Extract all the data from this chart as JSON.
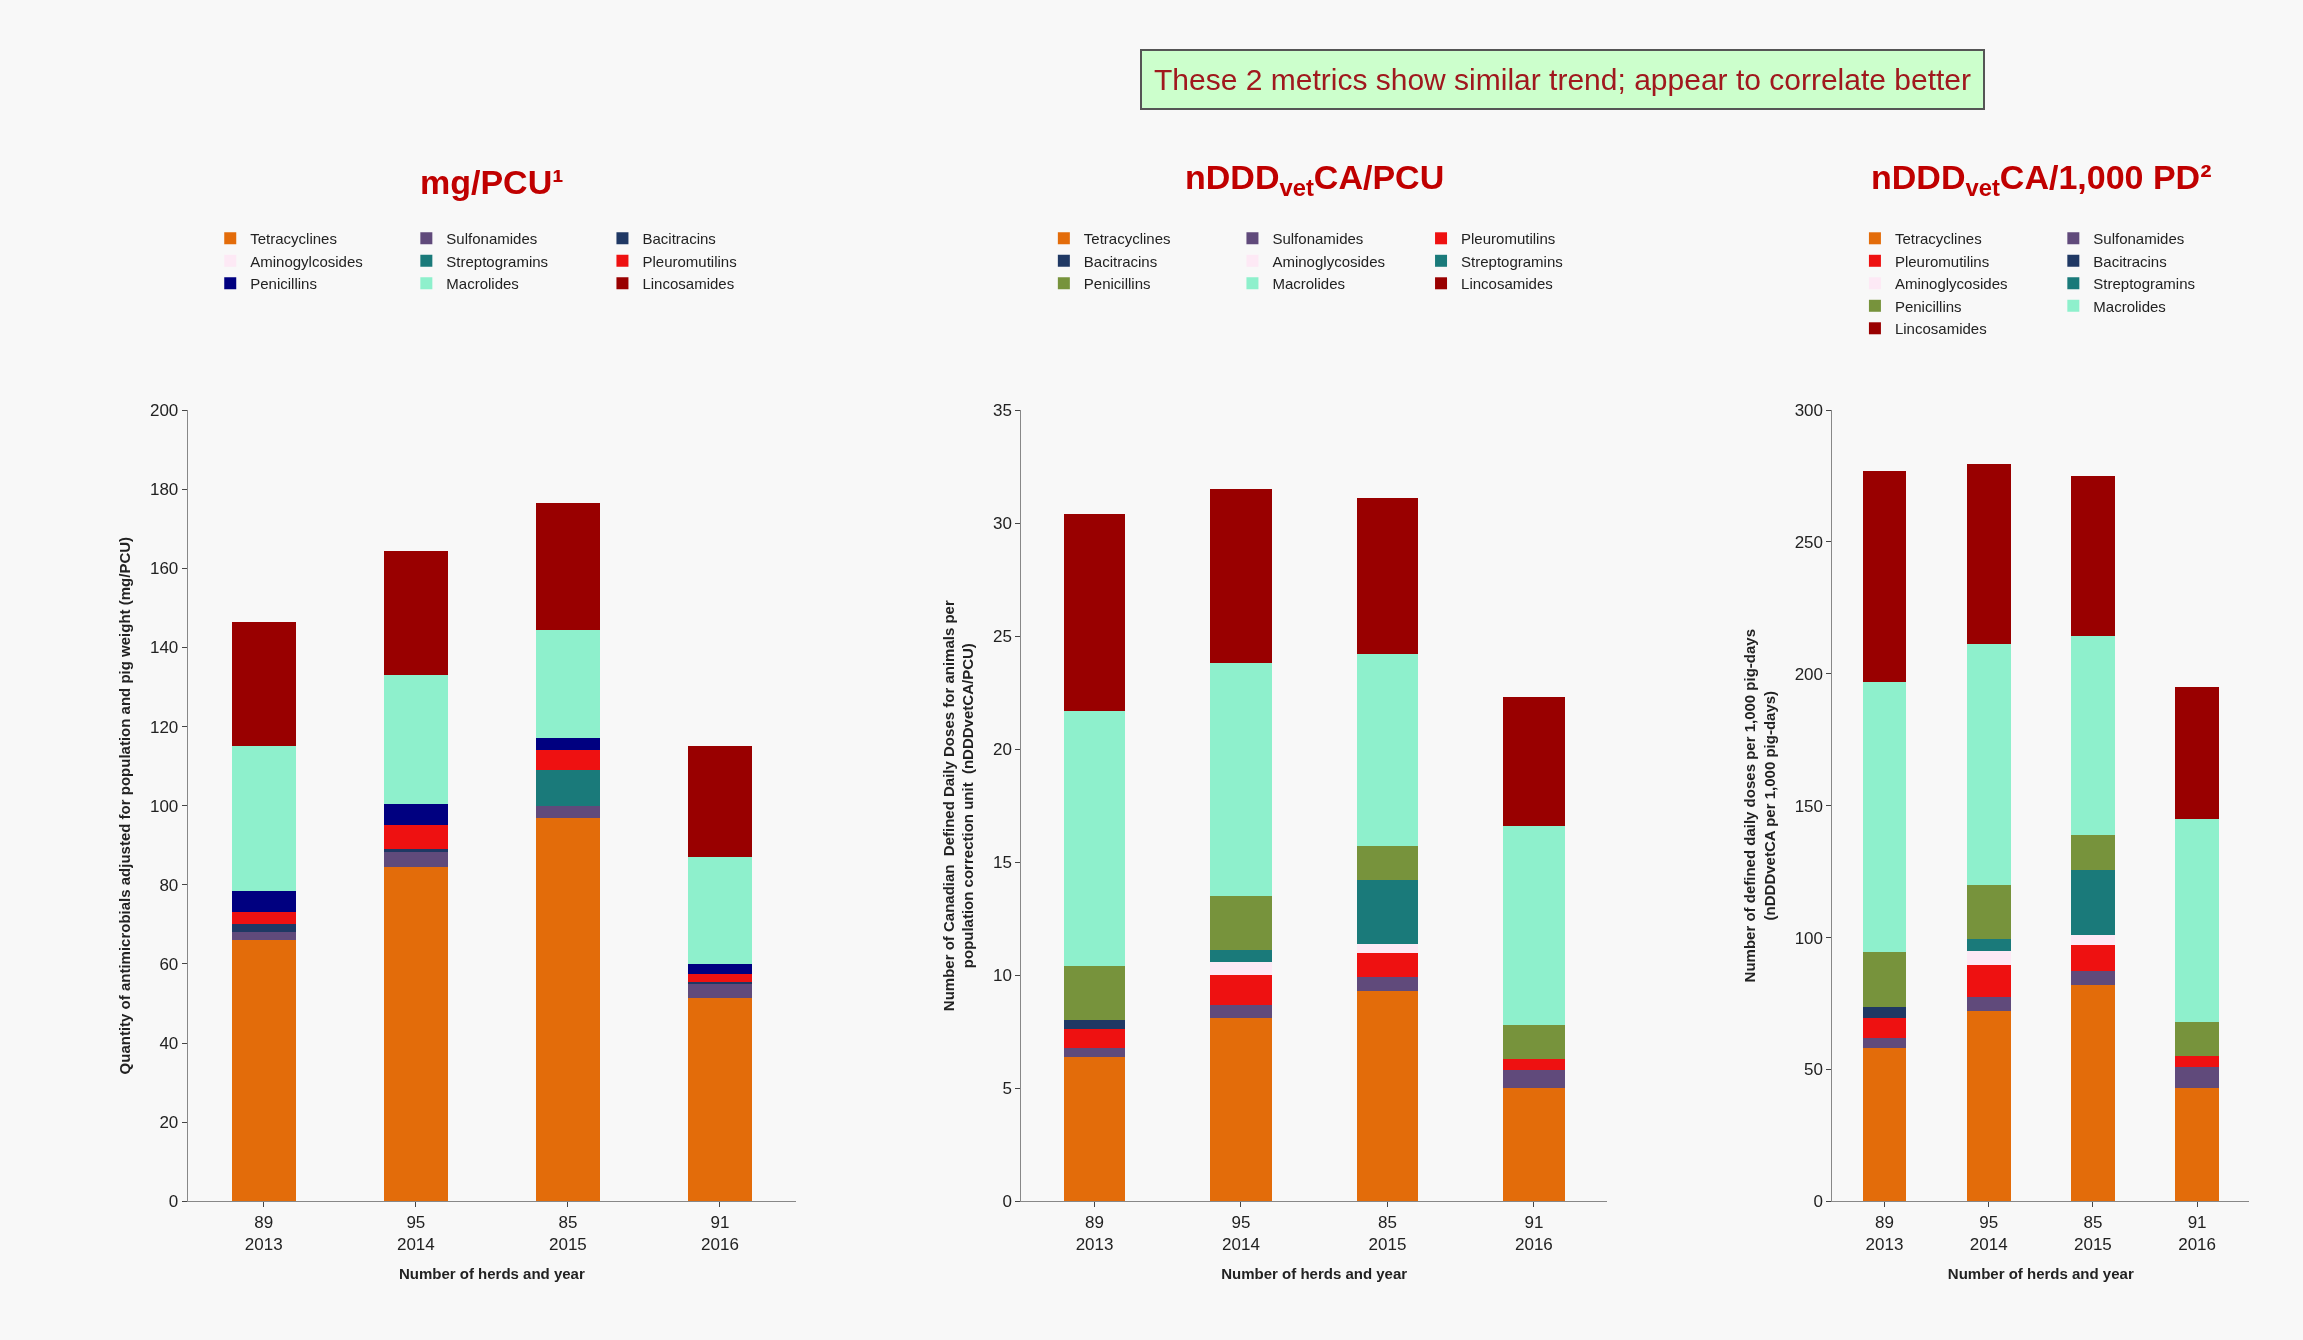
{
  "chart_data": [
    {
      "type": "bar",
      "stacked": true,
      "title": "mg/PCU¹",
      "xlabel": "Number of herds and year",
      "ylabel": "Quantity of antimicrobials adjusted for population and pig weight (mg/PCU)",
      "categories": [
        "89\n2013",
        "95\n2014",
        "85\n2015",
        "91\n2016"
      ],
      "ylim": [
        0,
        200
      ],
      "yticks": [
        0,
        20,
        40,
        60,
        80,
        100,
        120,
        140,
        160,
        180,
        200
      ],
      "grid": false,
      "legend": "top",
      "series": [
        {
          "name": "Tetracyclines",
          "color": "#e36c0a",
          "values": [
            66,
            84.5,
            97,
            51.5
          ]
        },
        {
          "name": "Sulfonamides",
          "color": "#604a7b",
          "values": [
            2,
            4,
            3,
            3.5
          ]
        },
        {
          "name": "Bacitracins",
          "color": "#1f3864",
          "values": [
            2,
            0.5,
            0,
            0.5
          ]
        },
        {
          "name": "Aminogylcosides",
          "color": "#fde9f5",
          "values": [
            0,
            0,
            0,
            0
          ]
        },
        {
          "name": "Streptogramins",
          "color": "#1a7a7a",
          "values": [
            0,
            0,
            9,
            0
          ]
        },
        {
          "name": "Pleuromutilins",
          "color": "#ee1111",
          "values": [
            3,
            6,
            5,
            2
          ]
        },
        {
          "name": "Penicillins",
          "color": "#000080",
          "values": [
            5.5,
            5.5,
            3,
            2.5
          ]
        },
        {
          "name": "Macrolides",
          "color": "#8ef0cc",
          "values": [
            36.5,
            32.5,
            27.5,
            27
          ]
        },
        {
          "name": "Lincosamides",
          "color": "#990000",
          "values": [
            31.5,
            31.5,
            32,
            28
          ]
        }
      ]
    },
    {
      "type": "bar",
      "stacked": true,
      "title": "nDDD$_{vet}$CA/PCU",
      "xlabel": "Number of herds and year",
      "ylabel": "Number of Canadian  Defined Daily Doses for animals per\npopulation correction unit  (nDDDvetCA/PCU)",
      "annotations": [
        "These 2 metrics show similar trend; appear to correlate better"
      ],
      "categories": [
        "89\n2013",
        "95\n2014",
        "85\n2015",
        "91\n2016"
      ],
      "ylim": [
        0,
        35
      ],
      "yticks": [
        0,
        5,
        10,
        15,
        20,
        25,
        30,
        35
      ],
      "grid": false,
      "legend": "top",
      "series": [
        {
          "name": "Tetracyclines",
          "color": "#e36c0a",
          "values": [
            6.4,
            8.1,
            9.3,
            5.0
          ]
        },
        {
          "name": "Sulfonamides",
          "color": "#604a7b",
          "values": [
            0.4,
            0.6,
            0.6,
            0.8
          ]
        },
        {
          "name": "Pleuromutilins",
          "color": "#ee1111",
          "values": [
            0.8,
            1.3,
            1.1,
            0.5
          ]
        },
        {
          "name": "Bacitracins",
          "color": "#1f3864",
          "values": [
            0.4,
            0,
            0,
            0
          ]
        },
        {
          "name": "Aminoglycosides",
          "color": "#fde9f5",
          "values": [
            0,
            0.6,
            0.4,
            0
          ]
        },
        {
          "name": "Streptogramins",
          "color": "#1a7a7a",
          "values": [
            0,
            0.5,
            2.8,
            0
          ]
        },
        {
          "name": "Penicillins",
          "color": "#77933c",
          "values": [
            2.4,
            2.4,
            1.5,
            1.5
          ]
        },
        {
          "name": "Macrolides",
          "color": "#8ef0cc",
          "values": [
            11.3,
            10.3,
            8.5,
            8.8
          ]
        },
        {
          "name": "Lincosamides",
          "color": "#990000",
          "values": [
            8.7,
            7.7,
            6.9,
            5.7
          ]
        }
      ]
    },
    {
      "type": "bar",
      "stacked": true,
      "title": "nDDD$_{vet}$CA/1,000 PD²",
      "xlabel": "Number of herds and year",
      "ylabel": "Number of defined daily doses per 1,000 pig-days\n(nDDDvetCA per 1,000 pig-days)",
      "categories": [
        "89\n2013",
        "95\n2014",
        "85\n2015",
        "91\n2016"
      ],
      "ylim": [
        0,
        300
      ],
      "yticks": [
        0,
        50,
        100,
        150,
        200,
        250,
        300
      ],
      "grid": false,
      "legend": "top",
      "series": [
        {
          "name": "Tetracyclines",
          "color": "#e36c0a",
          "values": [
            58,
            72,
            82,
            43
          ]
        },
        {
          "name": "Sulfonamides",
          "color": "#604a7b",
          "values": [
            4,
            5.5,
            5.5,
            8
          ]
        },
        {
          "name": "Pleuromutilins",
          "color": "#ee1111",
          "values": [
            7.5,
            12,
            9.5,
            4
          ]
        },
        {
          "name": "Bacitracins",
          "color": "#1f3864",
          "values": [
            4,
            0,
            0,
            0
          ]
        },
        {
          "name": "Aminoglycosides",
          "color": "#fde9f5",
          "values": [
            0,
            5.5,
            4,
            0
          ]
        },
        {
          "name": "Streptogramins",
          "color": "#1a7a7a",
          "values": [
            0,
            4.5,
            24.5,
            0
          ]
        },
        {
          "name": "Penicillins",
          "color": "#77933c",
          "values": [
            21,
            20.5,
            13.5,
            13
          ]
        },
        {
          "name": "Macrolides",
          "color": "#8ef0cc",
          "values": [
            102.5,
            91.5,
            75.5,
            77
          ]
        },
        {
          "name": "Lincosamides",
          "color": "#990000",
          "values": [
            80,
            68,
            60.5,
            50
          ]
        }
      ]
    }
  ]
}
